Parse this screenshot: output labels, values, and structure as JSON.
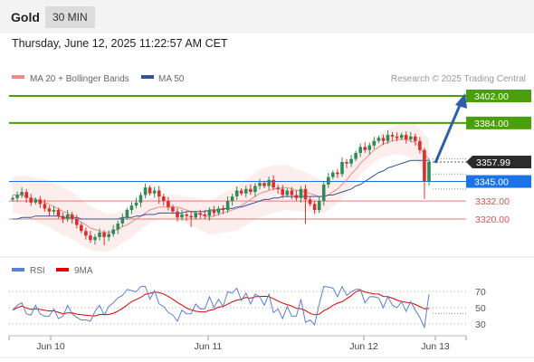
{
  "header": {
    "symbol": "Gold",
    "timeframe": "30 MIN",
    "datetime": "Thursday, June 12, 2025 11:22:57 AM CET"
  },
  "price_panel": {
    "legend": [
      {
        "label": "MA 20 + Bollinger Bands",
        "color": "#f08a8a"
      },
      {
        "label": "MA 50",
        "color": "#2f5597"
      }
    ],
    "copyright": "Research © 2025 Trading Central",
    "colors": {
      "support": "#1a73e8",
      "resistance": "#4aa00a",
      "bearish_level": "#e05050",
      "bull_candle": "#2e8b57",
      "bear_candle": "#d9302c",
      "current_price_tag": "#2b2b2b",
      "forecast_arrow": "#2f5fa8"
    }
  },
  "rsi_panel": {
    "legend": [
      {
        "label": "RSI",
        "color": "#5b7fd6"
      },
      {
        "label": "9MA",
        "color": "#e00000"
      }
    ]
  },
  "x_labels": [
    "Jun 10",
    "Jun 11",
    "Jun 12",
    "Jun 13"
  ],
  "chart_data": [
    {
      "type": "candlestick",
      "title": "Gold 30 MIN",
      "x_ticks": [
        "Jun 10",
        "Jun 11",
        "Jun 12",
        "Jun 13"
      ],
      "ylim": [
        3300,
        3412
      ],
      "levels": [
        {
          "label": "3402.00",
          "value": 3402,
          "kind": "resistance"
        },
        {
          "label": "3384.00",
          "value": 3384,
          "kind": "resistance"
        },
        {
          "label": "3357.99",
          "value": 3357.99,
          "kind": "current"
        },
        {
          "label": "3345.00",
          "value": 3345,
          "kind": "support"
        },
        {
          "label": "3332.00",
          "value": 3332,
          "kind": "bearish"
        },
        {
          "label": "3320.00",
          "value": 3320,
          "kind": "bearish"
        }
      ],
      "close_series": [
        3334,
        3336,
        3338,
        3334,
        3331,
        3333,
        3330,
        3327,
        3325,
        3326,
        3322,
        3320,
        3323,
        3320,
        3316,
        3312,
        3309,
        3306,
        3308,
        3311,
        3308,
        3310,
        3313,
        3317,
        3321,
        3326,
        3329,
        3331,
        3336,
        3341,
        3337,
        3339,
        3335,
        3332,
        3328,
        3325,
        3321,
        3323,
        3322,
        3321,
        3324,
        3323,
        3322,
        3326,
        3324,
        3327,
        3326,
        3332,
        3335,
        3339,
        3337,
        3340,
        3338,
        3342,
        3344,
        3342,
        3346,
        3341,
        3340,
        3336,
        3339,
        3336,
        3334,
        3340,
        3333,
        3330,
        3326,
        3332,
        3343,
        3348,
        3351,
        3350,
        3358,
        3357,
        3360,
        3364,
        3368,
        3366,
        3369,
        3372,
        3374,
        3372,
        3376,
        3375,
        3374,
        3376,
        3373,
        3375,
        3372,
        3366,
        3345,
        3358
      ],
      "ma20": [
        3336,
        3336,
        3336,
        3335,
        3334,
        3333,
        3332,
        3331,
        3330,
        3328,
        3327,
        3325,
        3324,
        3322,
        3320,
        3318,
        3316,
        3314,
        3313,
        3312,
        3311,
        3311,
        3312,
        3313,
        3315,
        3316,
        3318,
        3320,
        3322,
        3324,
        3326,
        3327,
        3328,
        3328,
        3328,
        3328,
        3328,
        3327,
        3326,
        3325,
        3324,
        3323,
        3322,
        3321,
        3322,
        3323,
        3324,
        3325,
        3326,
        3327,
        3329,
        3331,
        3333,
        3335,
        3337,
        3338,
        3339,
        3340,
        3340,
        3341,
        3341,
        3340,
        3339,
        3339,
        3338,
        3337,
        3336,
        3335,
        3335,
        3336,
        3338,
        3340,
        3343,
        3346,
        3350,
        3353,
        3357,
        3360,
        3363,
        3366,
        3368,
        3370,
        3371,
        3372,
        3373,
        3373,
        3373,
        3372,
        3371,
        3368,
        3363,
        3360
      ],
      "ma50": [
        3320,
        3320,
        3321,
        3321,
        3321,
        3322,
        3322,
        3322,
        3322,
        3322,
        3322,
        3321,
        3321,
        3321,
        3321,
        3320,
        3320,
        3320,
        3320,
        3320,
        3320,
        3320,
        3320,
        3320,
        3321,
        3321,
        3321,
        3322,
        3322,
        3323,
        3323,
        3323,
        3324,
        3324,
        3324,
        3324,
        3324,
        3324,
        3325,
        3325,
        3325,
        3325,
        3325,
        3326,
        3326,
        3326,
        3327,
        3327,
        3327,
        3328,
        3328,
        3329,
        3330,
        3331,
        3332,
        3333,
        3333,
        3334,
        3334,
        3335,
        3335,
        3335,
        3335,
        3335,
        3335,
        3335,
        3335,
        3335,
        3335,
        3336,
        3336,
        3337,
        3338,
        3339,
        3340,
        3342,
        3343,
        3345,
        3347,
        3349,
        3351,
        3352,
        3354,
        3355,
        3356,
        3357,
        3358,
        3359,
        3359,
        3359,
        3359,
        3359
      ]
    },
    {
      "type": "line",
      "title": "RSI",
      "ylim": [
        20,
        80
      ],
      "y_ticks": [
        70,
        50,
        30
      ],
      "series_names": [
        "RSI",
        "9MA"
      ]
    }
  ]
}
